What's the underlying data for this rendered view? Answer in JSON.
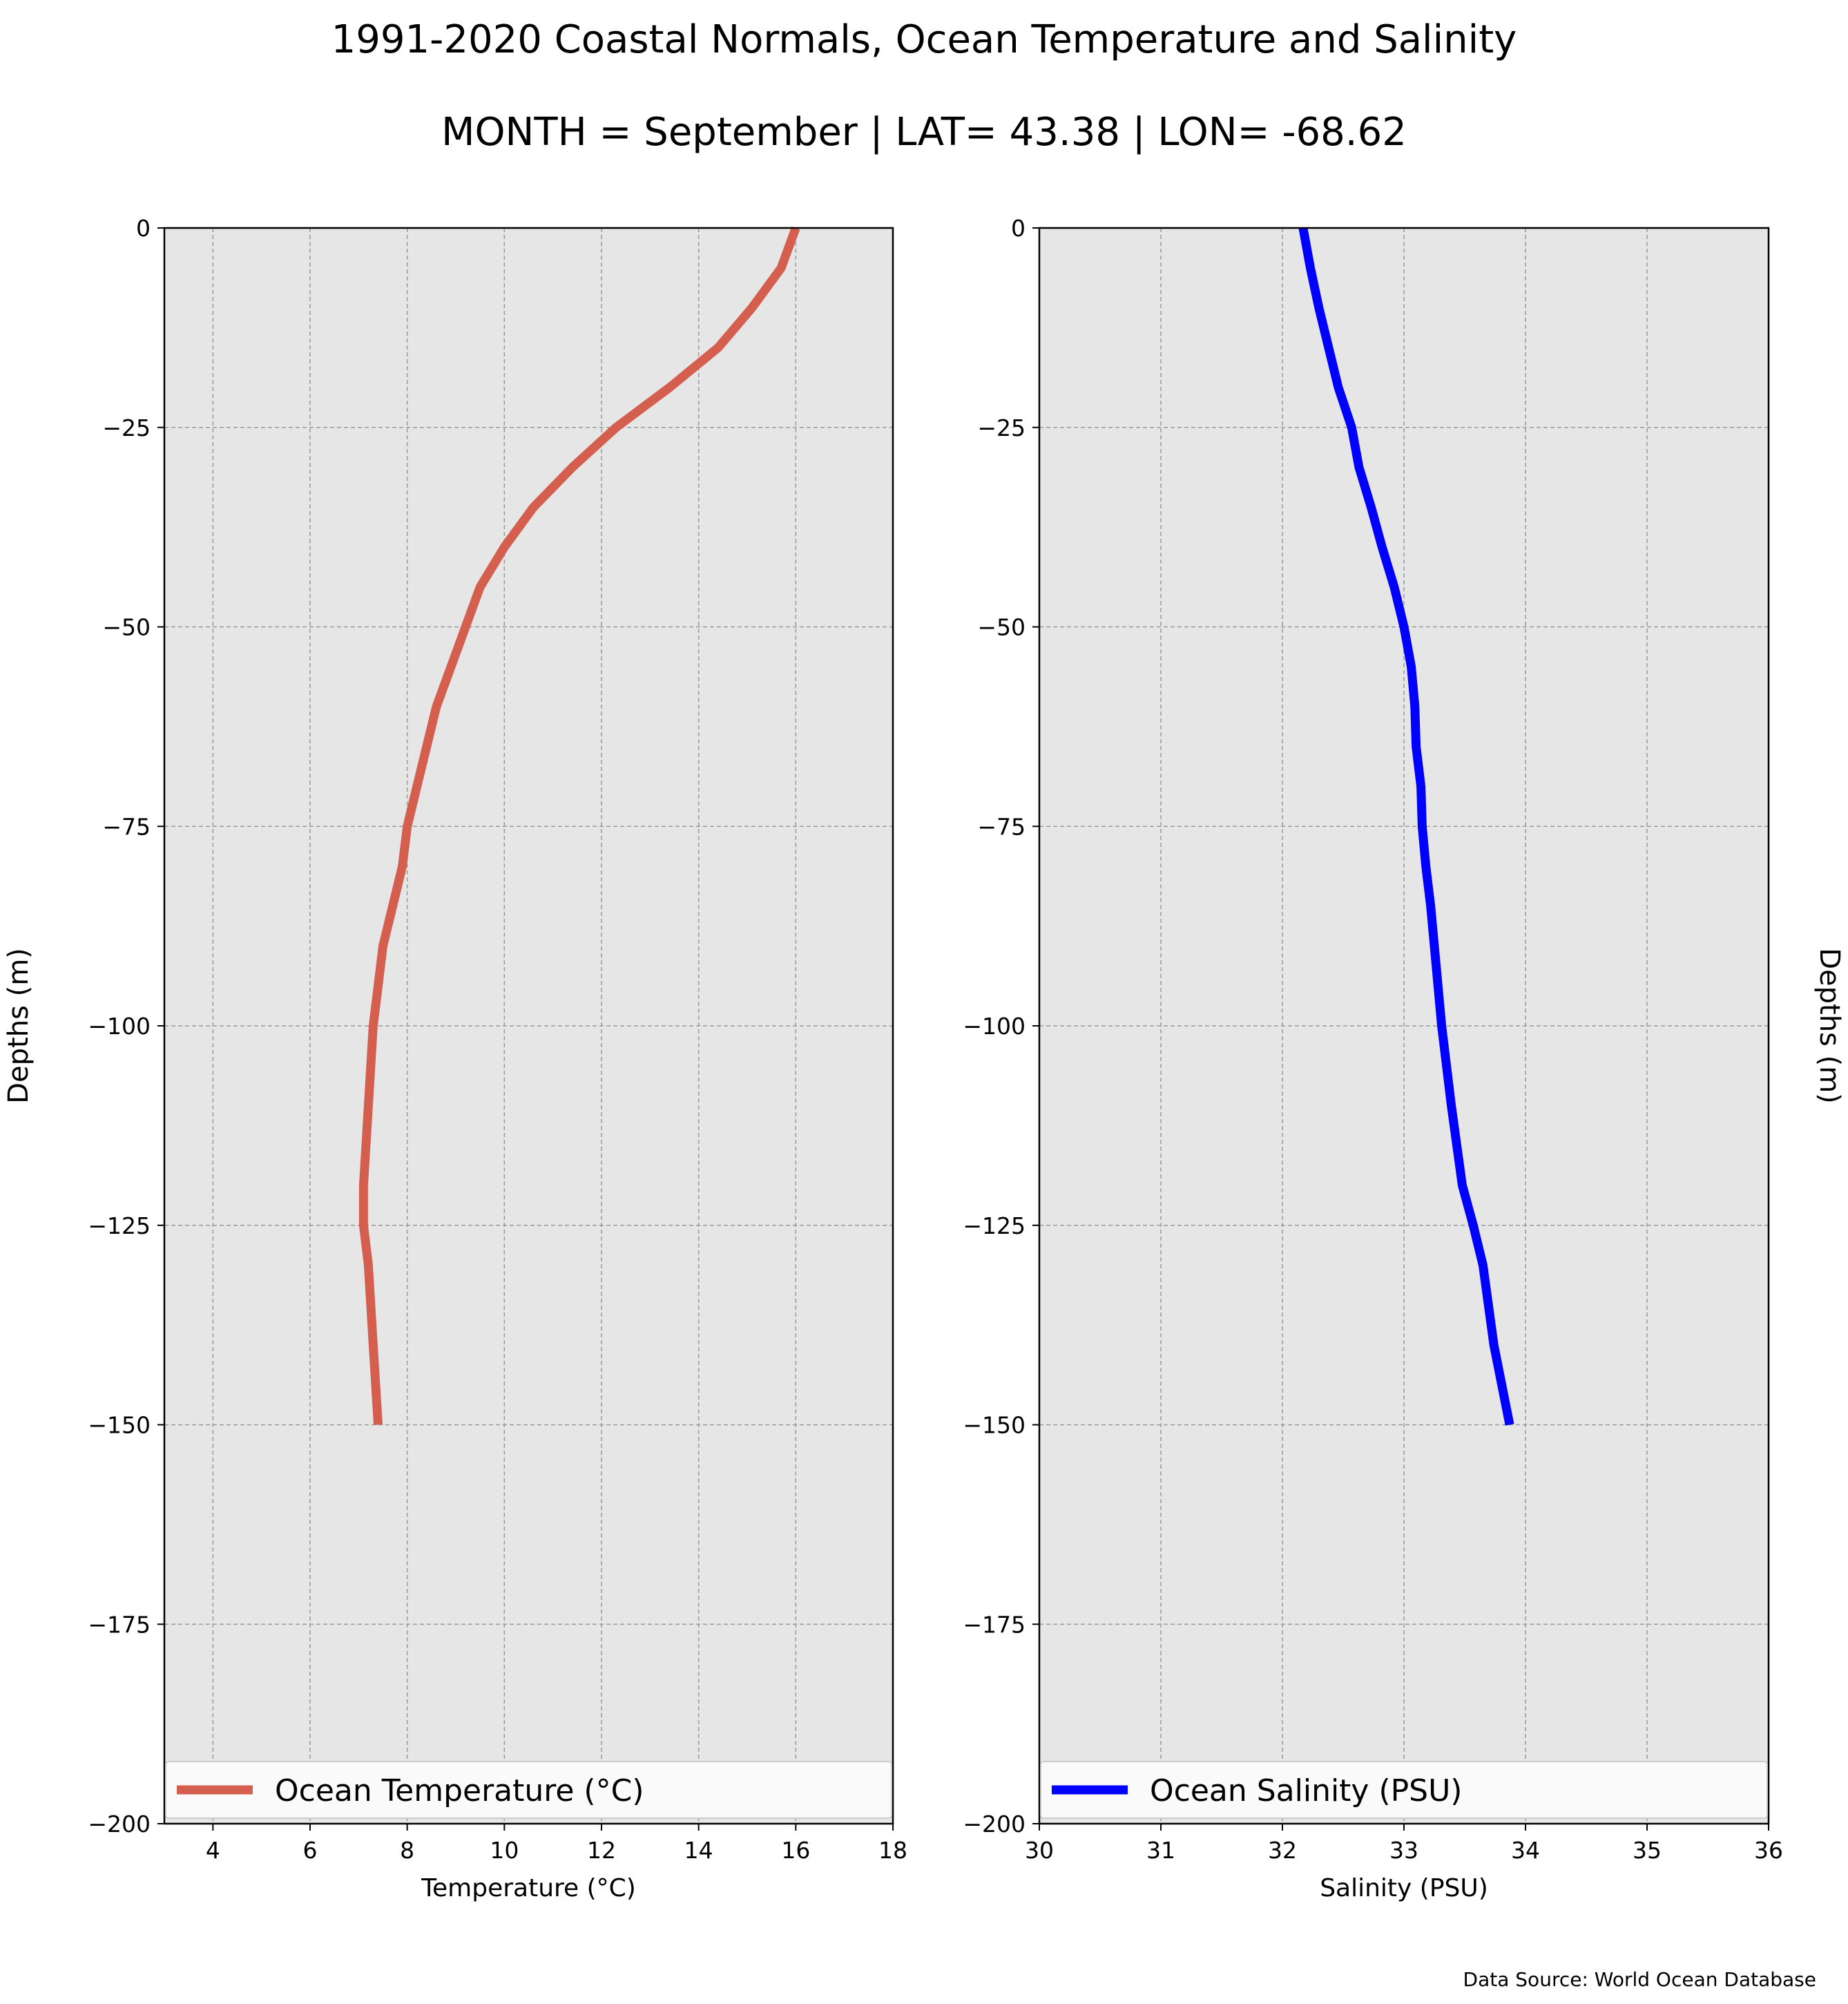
{
  "title": "1991-2020 Coastal Normals, Ocean Temperature and Salinity",
  "subtitle": "MONTH = September | LAT= 43.38 | LON= -68.62",
  "source_note": "Data Source: World Ocean Database",
  "chart_data": [
    {
      "type": "line",
      "xlabel": "Temperature (°C)",
      "ylabel": "Depths (m)",
      "xlim": [
        3,
        18
      ],
      "ylim": [
        -200,
        0
      ],
      "xticks": [
        4,
        6,
        8,
        10,
        12,
        14,
        16,
        18
      ],
      "xtick_labels": [
        "4",
        "6",
        "8",
        "10",
        "12",
        "14",
        "16",
        "18"
      ],
      "yticks": [
        0,
        -25,
        -50,
        -75,
        -100,
        -125,
        -150,
        -175,
        -200
      ],
      "ytick_labels": [
        "0",
        "−25",
        "−50",
        "−75",
        "−100",
        "−125",
        "−150",
        "−175",
        "−200"
      ],
      "grid": true,
      "legend_position": "bottom",
      "ylabel_side": "left",
      "series": [
        {
          "name": "Ocean Temperature (°C)",
          "color": "#d45f4f",
          "x": [
            16.0,
            15.7,
            15.1,
            14.4,
            13.4,
            12.3,
            11.4,
            10.6,
            10.0,
            9.5,
            9.2,
            8.9,
            8.6,
            8.4,
            8.2,
            8.0,
            7.9,
            7.7,
            7.5,
            7.4,
            7.3,
            7.2,
            7.1,
            7.1,
            7.2,
            7.3,
            7.4
          ],
          "y": [
            0,
            -5,
            -10,
            -15,
            -20,
            -25,
            -30,
            -35,
            -40,
            -45,
            -50,
            -55,
            -60,
            -65,
            -70,
            -75,
            -80,
            -85,
            -90,
            -95,
            -100,
            -110,
            -120,
            -125,
            -130,
            -140,
            -150
          ]
        }
      ]
    },
    {
      "type": "line",
      "xlabel": "Salinity (PSU)",
      "ylabel": "Depths (m)",
      "xlim": [
        30,
        36
      ],
      "ylim": [
        -200,
        0
      ],
      "xticks": [
        30,
        31,
        32,
        33,
        34,
        35,
        36
      ],
      "xtick_labels": [
        "30",
        "31",
        "32",
        "33",
        "34",
        "35",
        "36"
      ],
      "yticks": [
        0,
        -25,
        -50,
        -75,
        -100,
        -125,
        -150,
        -175,
        -200
      ],
      "ytick_labels": [
        "0",
        "−25",
        "−50",
        "−75",
        "−100",
        "−125",
        "−150",
        "−175",
        "−200"
      ],
      "grid": true,
      "legend_position": "bottom",
      "ylabel_side": "right",
      "series": [
        {
          "name": "Ocean Salinity (PSU)",
          "color": "#0000ff",
          "x": [
            32.17,
            32.23,
            32.3,
            32.38,
            32.46,
            32.57,
            32.63,
            32.73,
            32.82,
            32.92,
            33.0,
            33.06,
            33.09,
            33.1,
            33.14,
            33.15,
            33.18,
            33.22,
            33.25,
            33.28,
            33.31,
            33.39,
            33.48,
            33.57,
            33.65,
            33.74,
            33.87
          ],
          "y": [
            0,
            -5,
            -10,
            -15,
            -20,
            -25,
            -30,
            -35,
            -40,
            -45,
            -50,
            -55,
            -60,
            -65,
            -70,
            -75,
            -80,
            -85,
            -90,
            -95,
            -100,
            -110,
            -120,
            -125,
            -130,
            -140,
            -150
          ]
        }
      ]
    }
  ]
}
